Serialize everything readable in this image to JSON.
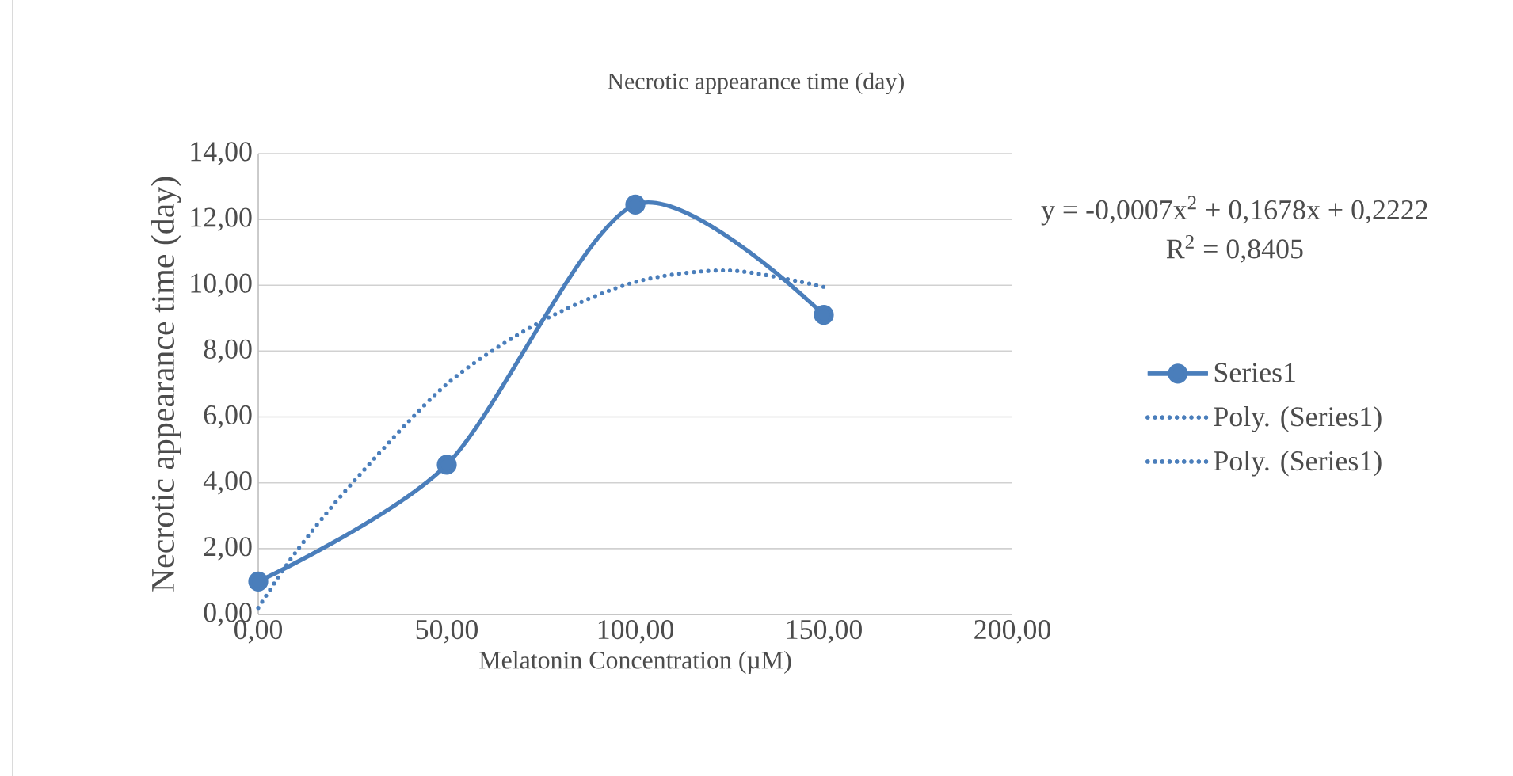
{
  "chart_data": {
    "type": "line",
    "title": "Necrotic appearance time (day)",
    "xlabel": "Melatonin Concentration  (µM)",
    "ylabel": "Necrotic appearance time (day)",
    "xlim": [
      0,
      200
    ],
    "ylim": [
      0,
      14
    ],
    "xticks": [
      {
        "value": 0,
        "label": "0,00"
      },
      {
        "value": 50,
        "label": "50,00"
      },
      {
        "value": 100,
        "label": "100,00"
      },
      {
        "value": 150,
        "label": "150,00"
      },
      {
        "value": 200,
        "label": "200,00"
      }
    ],
    "yticks": [
      {
        "value": 0,
        "label": "0,00"
      },
      {
        "value": 2,
        "label": "2,00"
      },
      {
        "value": 4,
        "label": "4,00"
      },
      {
        "value": 6,
        "label": "6,00"
      },
      {
        "value": 8,
        "label": "8,00"
      },
      {
        "value": 10,
        "label": "10,00"
      },
      {
        "value": 12,
        "label": "12,00"
      },
      {
        "value": 14,
        "label": "14,00"
      }
    ],
    "grid": "y",
    "legend": "right",
    "annotations": [
      "y = -0,0007x$^{2}$ + 0,1678x + 0,2222",
      "R$^{2}$ = 0,8405"
    ],
    "series": [
      {
        "name": "Series1",
        "color": "#4a7ebb",
        "x": [
          0,
          50,
          100,
          150
        ],
        "values": [
          1.0,
          4.55,
          12.45,
          9.1
        ],
        "marker": "circle",
        "line_style": "solid"
      },
      {
        "name": "Poly. (Series1)",
        "color": "#4a7ebb",
        "x": [
          0,
          10,
          25,
          50,
          75,
          100,
          125,
          150
        ],
        "values": [
          0.2,
          1.9,
          4.0,
          7.0,
          8.9,
          10.1,
          10.45,
          9.95
        ],
        "marker": "none",
        "line_style": "dotted"
      },
      {
        "name": "Poly. (Series1)",
        "color": "#4a7ebb",
        "values": [
          null
        ],
        "marker": "none",
        "line_style": "dotted"
      }
    ]
  }
}
